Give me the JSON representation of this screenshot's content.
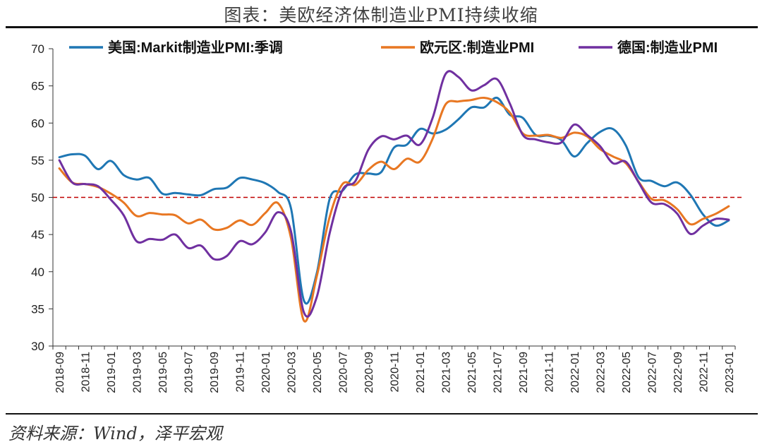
{
  "title": "图表：美欧经济体制造业PMI持续收缩",
  "source": "资料来源：Wind，泽平宏观",
  "chart_data": {
    "type": "line",
    "title": "图表：美欧经济体制造业PMI持续收缩",
    "xlabel": "",
    "ylabel": "",
    "ylim": [
      30,
      70
    ],
    "yticks": [
      30,
      35,
      40,
      45,
      50,
      55,
      60,
      65,
      70
    ],
    "legend_position": "top",
    "x_tick_labels": [
      "2018-09",
      "2018-11",
      "2019-01",
      "2019-03",
      "2019-05",
      "2019-07",
      "2019-09",
      "2019-11",
      "2020-01",
      "2020-03",
      "2020-05",
      "2020-07",
      "2020-09",
      "2020-11",
      "2021-01",
      "2021-03",
      "2021-05",
      "2021-07",
      "2021-09",
      "2021-11",
      "2022-01",
      "2022-03",
      "2022-05",
      "2022-07",
      "2022-09",
      "2022-11",
      "2023-01"
    ],
    "x": [
      "2018-09",
      "2018-10",
      "2018-11",
      "2018-12",
      "2019-01",
      "2019-02",
      "2019-03",
      "2019-04",
      "2019-05",
      "2019-06",
      "2019-07",
      "2019-08",
      "2019-09",
      "2019-10",
      "2019-11",
      "2019-12",
      "2020-01",
      "2020-02",
      "2020-03",
      "2020-04",
      "2020-05",
      "2020-06",
      "2020-07",
      "2020-08",
      "2020-09",
      "2020-10",
      "2020-11",
      "2020-12",
      "2021-01",
      "2021-02",
      "2021-03",
      "2021-04",
      "2021-05",
      "2021-06",
      "2021-07",
      "2021-08",
      "2021-09",
      "2021-10",
      "2021-11",
      "2021-12",
      "2022-01",
      "2022-02",
      "2022-03",
      "2022-04",
      "2022-05",
      "2022-06",
      "2022-07",
      "2022-08",
      "2022-09",
      "2022-10",
      "2022-11",
      "2022-12",
      "2023-01"
    ],
    "reference_line": {
      "value": 50,
      "color": "#C00000",
      "style": "dashed"
    },
    "series": [
      {
        "name": "美国:Markit制造业PMI:季调",
        "color": "#1F77B4",
        "values": [
          55.4,
          55.8,
          55.6,
          53.8,
          54.9,
          53.0,
          52.4,
          52.6,
          50.5,
          50.6,
          50.4,
          50.3,
          51.1,
          51.3,
          52.6,
          52.4,
          51.9,
          50.7,
          48.5,
          36.1,
          39.8,
          49.8,
          50.9,
          53.1,
          53.2,
          53.4,
          56.7,
          57.1,
          59.2,
          58.6,
          59.1,
          60.5,
          62.1,
          62.1,
          63.4,
          61.1,
          60.7,
          58.4,
          58.3,
          57.7,
          55.5,
          57.3,
          58.8,
          59.2,
          57.0,
          52.7,
          52.2,
          51.5,
          52.0,
          50.4,
          47.7,
          46.2,
          46.9
        ]
      },
      {
        "name": "欧元区:制造业PMI",
        "color": "#E87722",
        "values": [
          53.9,
          52.0,
          51.8,
          51.4,
          50.5,
          49.3,
          47.5,
          47.9,
          47.7,
          47.6,
          46.5,
          47.0,
          45.7,
          45.9,
          46.9,
          46.3,
          47.9,
          49.2,
          44.5,
          33.4,
          39.4,
          47.4,
          51.8,
          51.7,
          53.7,
          54.8,
          53.8,
          55.2,
          54.8,
          57.9,
          62.5,
          62.9,
          63.1,
          63.4,
          62.8,
          61.4,
          58.6,
          58.3,
          58.4,
          58.0,
          58.7,
          58.2,
          56.5,
          55.5,
          54.6,
          52.1,
          49.8,
          49.6,
          48.4,
          46.4,
          47.1,
          47.8,
          48.8
        ]
      },
      {
        "name": "德国:制造业PMI",
        "color": "#7030A0",
        "values": [
          55.0,
          52.0,
          51.8,
          51.5,
          49.7,
          47.6,
          44.1,
          44.4,
          44.3,
          45.0,
          43.2,
          43.5,
          41.7,
          42.1,
          44.1,
          43.7,
          45.3,
          48.0,
          45.4,
          34.5,
          36.6,
          45.2,
          51.0,
          52.2,
          56.4,
          58.2,
          57.8,
          58.3,
          57.1,
          60.7,
          66.6,
          66.2,
          64.4,
          65.1,
          65.9,
          62.6,
          58.4,
          57.8,
          57.4,
          57.4,
          59.8,
          58.4,
          56.9,
          54.6,
          54.8,
          52.0,
          49.3,
          49.1,
          47.8,
          45.1,
          46.2,
          47.1,
          47.0
        ]
      }
    ]
  }
}
